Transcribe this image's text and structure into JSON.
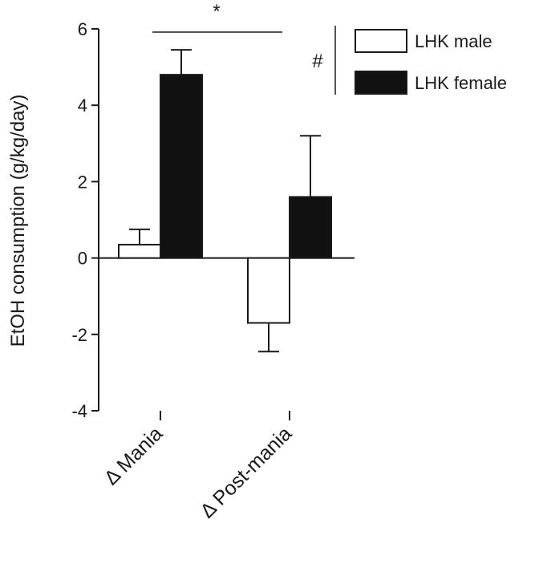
{
  "chart_data": {
    "type": "bar",
    "ylabel": "EtOH consumption (g/kg/day)",
    "ylim": [
      -4,
      6
    ],
    "yticks": [
      -4,
      -2,
      0,
      2,
      4,
      6
    ],
    "categories": [
      "Δ Mania",
      "Δ Post-mania"
    ],
    "series": [
      {
        "name": "LHK male",
        "values": [
          0.35,
          -1.7
        ],
        "error": [
          0.4,
          0.75
        ],
        "fill": "#ffffff"
      },
      {
        "name": "LHK female",
        "values": [
          4.8,
          1.6
        ],
        "error": [
          0.65,
          1.6
        ],
        "fill": "#111111"
      }
    ],
    "annotations": [
      {
        "text": "*",
        "between": "Δ Mania vs Δ Post-mania"
      },
      {
        "text": "#",
        "between": "LHK male vs LHK female"
      }
    ],
    "legend_position": "top-right",
    "grid": false
  }
}
